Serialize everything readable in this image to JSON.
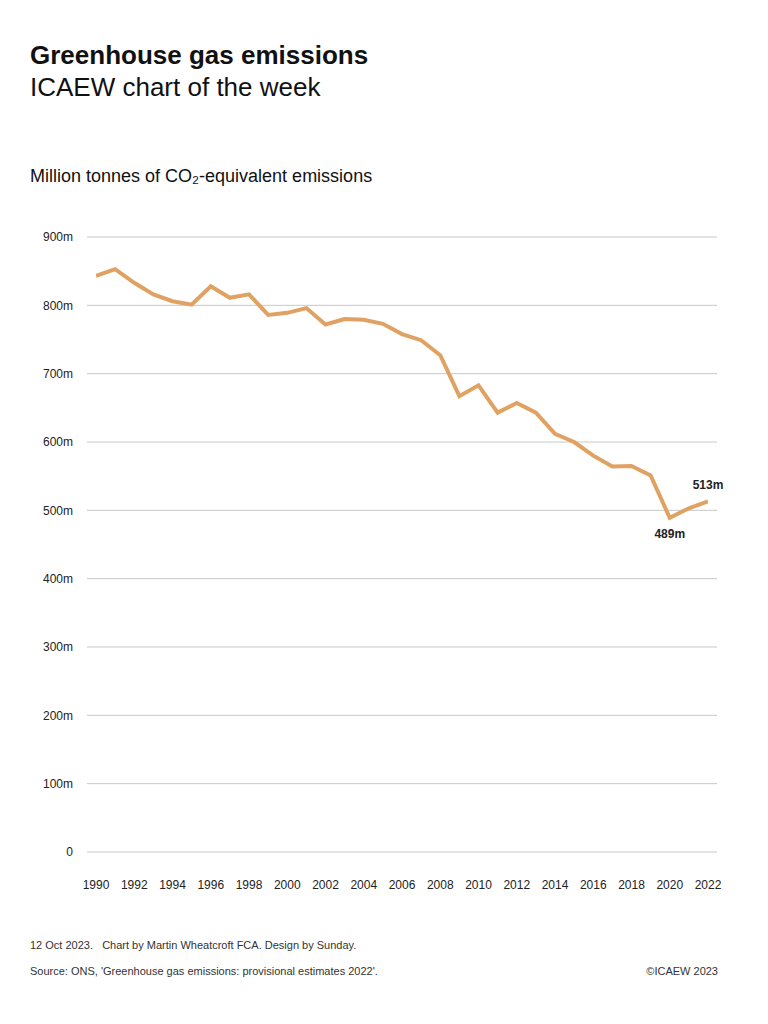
{
  "chart_data": {
    "type": "line",
    "title": "Greenhouse gas emissions",
    "subtitle": "ICAEW chart of the week",
    "y_label": "Million tonnes of CO₂-equivalent emissions",
    "x": [
      1990,
      1991,
      1992,
      1993,
      1994,
      1995,
      1996,
      1997,
      1998,
      1999,
      2000,
      2001,
      2002,
      2003,
      2004,
      2005,
      2006,
      2007,
      2008,
      2009,
      2010,
      2011,
      2012,
      2013,
      2014,
      2015,
      2016,
      2017,
      2018,
      2019,
      2020,
      2021,
      2022
    ],
    "values": [
      843,
      853,
      833,
      816,
      806,
      801,
      828,
      811,
      816,
      786,
      789,
      796,
      772,
      780,
      779,
      773,
      758,
      749,
      727,
      667,
      683,
      643,
      657,
      643,
      612,
      600,
      580,
      564,
      565,
      551,
      489,
      503,
      513
    ],
    "color": "#e0a263",
    "xlim": [
      1990,
      2022
    ],
    "xticks": [
      1990,
      1992,
      1994,
      1996,
      1998,
      2000,
      2002,
      2004,
      2006,
      2008,
      2010,
      2012,
      2014,
      2016,
      2018,
      2020,
      2022
    ],
    "ylim": [
      0,
      900
    ],
    "yticks": [
      0,
      {
        "value": 100,
        "label": "100m"
      },
      {
        "value": 200,
        "label": "200m"
      },
      {
        "value": 300,
        "label": "300m"
      },
      {
        "value": 400,
        "label": "400m"
      },
      {
        "value": 500,
        "label": "500m"
      },
      {
        "value": 600,
        "label": "600m"
      },
      {
        "value": 700,
        "label": "700m"
      },
      {
        "value": 800,
        "label": "800m"
      },
      {
        "value": 900,
        "label": "900m"
      }
    ],
    "grid": true,
    "annotations": [
      {
        "x": 2020,
        "value": 489,
        "label": "489m"
      },
      {
        "x": 2022,
        "value": 513,
        "label": "513m"
      }
    ],
    "footer": "12 Oct 2023.   Chart by Martin Wheatcroft FCA. Design by Sunday.",
    "source": "Source: ONS, 'Greenhouse gas emissions: provisional estimates 2022'.",
    "copyright": "©ICAEW 2023"
  }
}
